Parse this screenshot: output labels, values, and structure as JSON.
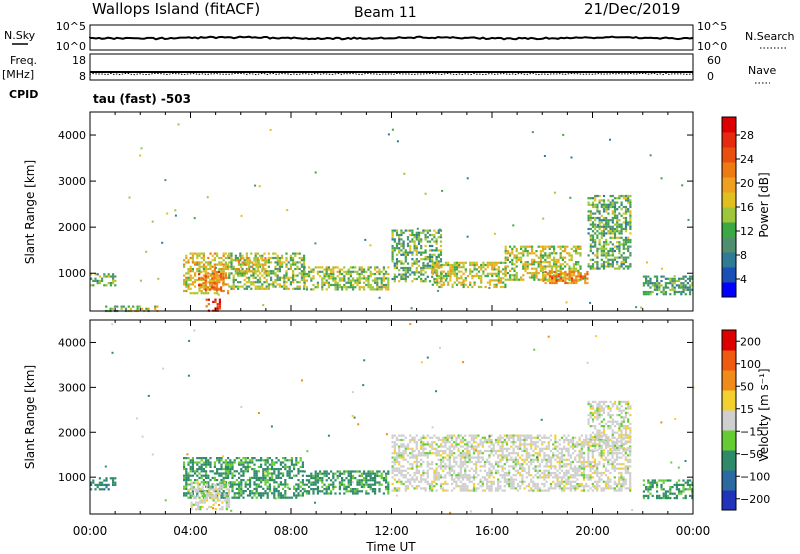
{
  "header": {
    "station": "Wallops Island (fitACF)",
    "beam": "Beam 11",
    "date": "21/Dec/2019"
  },
  "strips": {
    "nsky_label": "N.Sky",
    "nsky_ticks": [
      "10^5",
      "10^0"
    ],
    "nsearch_label": "N.Search",
    "nsearch_ticks": [
      "10^5",
      "10^0"
    ],
    "freq_label": "Freq.",
    "freq_unit": "[MHz]",
    "freq_ticks": [
      "18",
      "8"
    ],
    "nave_label": "Nave",
    "nave_ticks": [
      "60",
      "0"
    ],
    "cpid_label": "CPID",
    "cpid_value": "tau (fast) -503"
  },
  "chart_data": [
    {
      "type": "heatmap",
      "panel": "power",
      "ylabel": "Slant Range [km]",
      "ylim": [
        180,
        4500
      ],
      "yticks": [
        "1000",
        "2000",
        "3000",
        "4000"
      ],
      "xlim_hours": [
        0,
        24
      ],
      "colorbar_label": "Power [dB]",
      "colorbar_ticks": [
        "4",
        "8",
        "12",
        "16",
        "20",
        "24",
        "28"
      ],
      "colorbar_colors": [
        "#0000ff",
        "#1a4fb5",
        "#2f7a96",
        "#4f8f70",
        "#3ca843",
        "#9ec63a",
        "#e0c020",
        "#f0a020",
        "#ee7a12",
        "#e85010",
        "#e62a10",
        "#dd0000"
      ],
      "regions": [
        {
          "t": [
            0.0,
            1.0
          ],
          "r": [
            750,
            1000
          ],
          "level": 12
        },
        {
          "t": [
            0.6,
            1.4
          ],
          "r": [
            200,
            300
          ],
          "level": 12
        },
        {
          "t": [
            1.5,
            2.7
          ],
          "r": [
            200,
            300
          ],
          "level": 16
        },
        {
          "t": [
            3.7,
            5.5
          ],
          "r": [
            550,
            1450
          ],
          "level": 18
        },
        {
          "t": [
            4.3,
            5.3
          ],
          "r": [
            650,
            1050
          ],
          "level": 22
        },
        {
          "t": [
            4.6,
            5.2
          ],
          "r": [
            200,
            450
          ],
          "level": 28
        },
        {
          "t": [
            5.5,
            8.5
          ],
          "r": [
            650,
            1450
          ],
          "level": 14
        },
        {
          "t": [
            5.8,
            7.0
          ],
          "r": [
            1050,
            1350
          ],
          "level": 18
        },
        {
          "t": [
            8.5,
            11.9
          ],
          "r": [
            650,
            1150
          ],
          "level": 14
        },
        {
          "t": [
            12.0,
            14.0
          ],
          "r": [
            850,
            1950
          ],
          "level": 12
        },
        {
          "t": [
            13.6,
            16.5
          ],
          "r": [
            700,
            1250
          ],
          "level": 16
        },
        {
          "t": [
            16.5,
            19.5
          ],
          "r": [
            850,
            1600
          ],
          "level": 16
        },
        {
          "t": [
            18.0,
            19.8
          ],
          "r": [
            800,
            1050
          ],
          "level": 22
        },
        {
          "t": [
            19.8,
            21.5
          ],
          "r": [
            1100,
            2700
          ],
          "level": 12
        },
        {
          "t": [
            22.0,
            24.0
          ],
          "r": [
            550,
            950
          ],
          "level": 11
        }
      ]
    },
    {
      "type": "heatmap",
      "panel": "velocity",
      "ylabel": "Slant Range [km]",
      "ylim": [
        180,
        4500
      ],
      "yticks": [
        "1000",
        "2000",
        "3000",
        "4000"
      ],
      "xlim_hours": [
        0,
        24
      ],
      "xlabel": "Time UT",
      "xticks": [
        "00:00",
        "04:00",
        "08:00",
        "12:00",
        "16:00",
        "20:00",
        "00:00"
      ],
      "colorbar_label": "Velocity [m s⁻¹]",
      "colorbar_ticks": [
        "200",
        "100",
        "50",
        "15",
        "−15",
        "−50",
        "−100",
        "−200"
      ],
      "colorbar_colors": [
        "#2233bb",
        "#2a6aa0",
        "#2f8a6a",
        "#66cc33",
        "#cfcfcf",
        "#f2d030",
        "#f08a18",
        "#ee5a10",
        "#dd0000"
      ],
      "regions": [
        {
          "t": [
            0.0,
            1.0
          ],
          "r": [
            750,
            1000
          ],
          "level": 60
        },
        {
          "t": [
            3.7,
            8.5
          ],
          "r": [
            550,
            1450
          ],
          "level": 40
        },
        {
          "t": [
            4.0,
            5.5
          ],
          "r": [
            300,
            900
          ],
          "level": 0
        },
        {
          "t": [
            8.5,
            11.9
          ],
          "r": [
            650,
            1150
          ],
          "level": 40
        },
        {
          "t": [
            12.0,
            21.5
          ],
          "r": [
            700,
            1950
          ],
          "level": 0
        },
        {
          "t": [
            19.8,
            21.5
          ],
          "r": [
            1600,
            2700
          ],
          "level": 0
        },
        {
          "t": [
            22.0,
            24.0
          ],
          "r": [
            550,
            950
          ],
          "level": 40
        }
      ]
    }
  ]
}
